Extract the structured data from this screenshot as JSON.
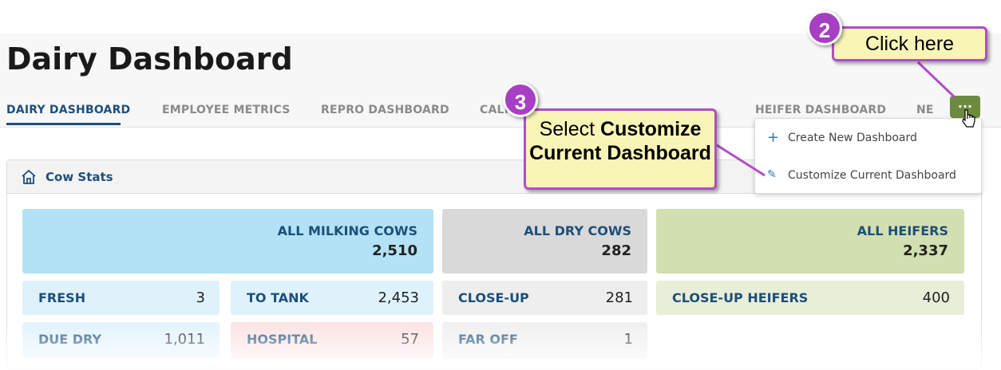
{
  "header": {
    "title": "Dairy Dashboard"
  },
  "tabs": [
    "DAIRY DASHBOARD",
    "EMPLOYEE METRICS",
    "REPRO DASHBOARD",
    "CALF",
    "HEIFER DASHBOARD",
    "NE"
  ],
  "menu": {
    "button": "...",
    "items": [
      "Create New Dashboard",
      "Customize Current Dashboard"
    ]
  },
  "panel": {
    "title": "Cow Stats",
    "tiles": [
      {
        "label": "ALL MILKING COWS",
        "value": "2,510"
      },
      {
        "label": "ALL DRY COWS",
        "value": "282"
      },
      {
        "label": "ALL HEIFERS",
        "value": "2,337"
      },
      {
        "label": "FRESH",
        "value": "3"
      },
      {
        "label": "TO TANK",
        "value": "2,453"
      },
      {
        "label": "CLOSE-UP",
        "value": "281"
      },
      {
        "label": "CLOSE-UP HEIFERS",
        "value": "400"
      },
      {
        "label": "DUE DRY",
        "value": "1,011"
      },
      {
        "label": "HOSPITAL",
        "value": "57"
      },
      {
        "label": "FAR OFF",
        "value": "1"
      }
    ]
  },
  "callouts": [
    {
      "number": "2",
      "text": "Click here"
    },
    {
      "number": "3",
      "text": "Select",
      "bold": "Customize Current Dashboard"
    }
  ]
}
